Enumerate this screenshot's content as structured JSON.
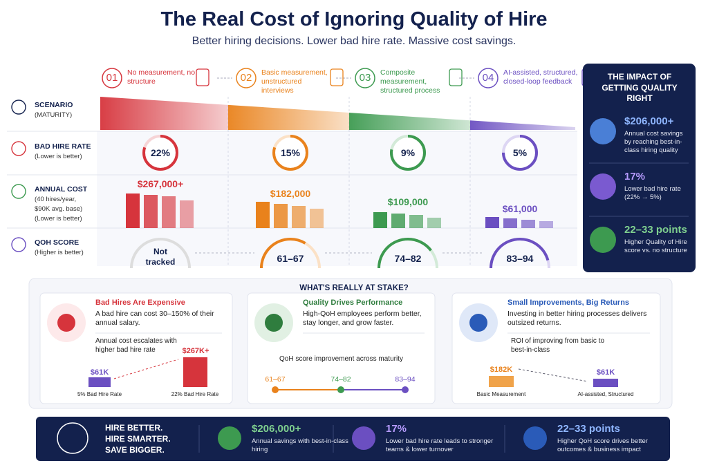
{
  "header": {
    "title": "The Real Cost of Ignoring Quality of Hire",
    "subtitle": "Better hiring decisions. Lower bad hire rate. Massive cost savings."
  },
  "stages": [
    {
      "number": "01",
      "label": "No measurement, no structure"
    },
    {
      "number": "02",
      "label": "Basic measurement, unstructured interviews"
    },
    {
      "number": "03",
      "label": "Composite measurement, structured process"
    },
    {
      "number": "04",
      "label": "AI-assisted, structured, closed-loop feedback"
    }
  ],
  "rows": [
    {
      "label": "SCENARIO",
      "note": [
        "(MATURITY)"
      ]
    },
    {
      "label": "BAD HIRE RATE",
      "note": [
        "(Lower is better)"
      ]
    },
    {
      "label": "ANNUAL COST",
      "note": [
        "(40 hires/year,",
        "$90K avg. base)",
        "(Lower is better)"
      ]
    },
    {
      "label": "QOH SCORE",
      "note": [
        "(Higher is better)"
      ]
    }
  ],
  "bad_hire_rate": [
    "22%",
    "15%",
    "9%",
    "5%"
  ],
  "annual_cost": [
    "$267,000+",
    "$182,000",
    "$109,000",
    "$61,000"
  ],
  "qoh_score": [
    "Not tracked",
    "61–67",
    "74–82",
    "83–94"
  ],
  "impact": {
    "title": "THE IMPACT OF GETTING QUALITY RIGHT",
    "items": [
      {
        "value": "$206,000+",
        "text": "Annual cost savings by reaching best-in-class hiring quality"
      },
      {
        "value": "17%",
        "text": "Lower bad hire rate (22% → 5%)"
      },
      {
        "value": "22–33 points",
        "text": "Higher Quality of Hire score vs. no structure"
      }
    ]
  },
  "stake": {
    "title": "WHAT'S REALLY AT STAKE?",
    "cards": [
      {
        "title": "Bad Hires Are Expensive",
        "text": "A bad hire can cost 30–150% of their annual salary.",
        "subtitle": "Annual cost escalates with higher bad hire rate",
        "bars": [
          {
            "value": "$61K",
            "label": "5% Bad Hire Rate"
          },
          {
            "value": "$267K+",
            "label": "22% Bad Hire Rate"
          }
        ]
      },
      {
        "title": "Quality Drives Performance",
        "text": "High-QoH employees perform better, stay longer, and grow faster.",
        "subtitle": "QoH score improvement across maturity",
        "points": [
          "61–67",
          "74–82",
          "83–94"
        ]
      },
      {
        "title": "Small Improvements, Big Returns",
        "text": "Investing in better hiring processes delivers outsized returns.",
        "subtitle": "ROI of improving from basic to best-in-class",
        "bars": [
          {
            "value": "$182K",
            "label": "Basic Measurement"
          },
          {
            "value": "$61K",
            "label": "AI-assisted, Structured"
          }
        ]
      }
    ]
  },
  "footer": {
    "slogan": [
      "HIRE BETTER.",
      "HIRE SMARTER.",
      "SAVE BIGGER."
    ],
    "items": [
      {
        "value": "$206,000+",
        "text": "Annual savings with best-in-class hiring"
      },
      {
        "value": "17%",
        "text": "Lower bad hire rate leads to stronger teams & lower turnover"
      },
      {
        "value": "22–33 points",
        "text": "Higher QoH score drives better outcomes & business impact"
      }
    ]
  }
}
